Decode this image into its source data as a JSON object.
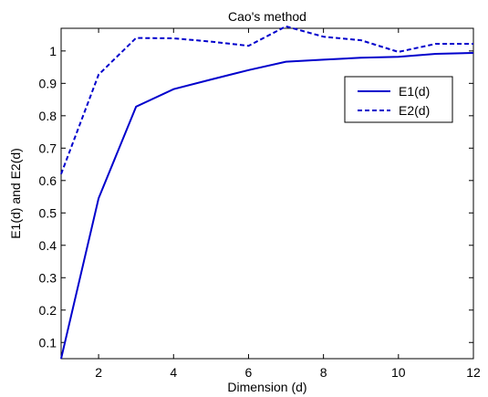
{
  "chart_data": {
    "type": "line",
    "title": "Cao's method",
    "xlabel": "Dimension (d)",
    "ylabel": "E1(d) and E2(d)",
    "xlim": [
      1,
      12
    ],
    "ylim": [
      0.05,
      1.07
    ],
    "xticks": [
      2,
      4,
      6,
      8,
      10,
      12
    ],
    "yticks": [
      0.1,
      0.2,
      0.3,
      0.4,
      0.5,
      0.6,
      0.7,
      0.8,
      0.9,
      1
    ],
    "grid": false,
    "legend_position": "top-right",
    "x": [
      1,
      2,
      3,
      4,
      5,
      6,
      7,
      8,
      9,
      10,
      11,
      12
    ],
    "series": [
      {
        "name": "E1(d)",
        "style": "solid",
        "color": "#0000cc",
        "values": [
          0.05,
          0.545,
          0.828,
          0.882,
          0.912,
          0.941,
          0.967,
          0.973,
          0.979,
          0.982,
          0.991,
          0.994
        ]
      },
      {
        "name": "E2(d)",
        "style": "dashed",
        "color": "#0000cc",
        "values": [
          0.62,
          0.927,
          1.04,
          1.039,
          1.029,
          1.016,
          1.076,
          1.044,
          1.033,
          0.997,
          1.022,
          1.022
        ]
      }
    ]
  }
}
